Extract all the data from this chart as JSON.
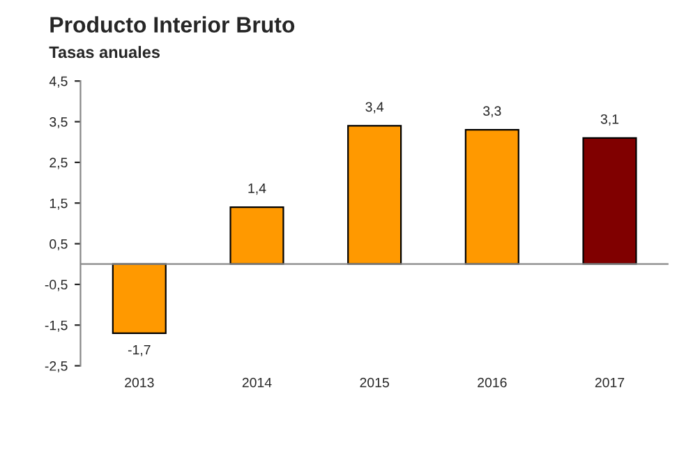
{
  "chart_data": {
    "type": "bar",
    "title": "Producto Interior Bruto",
    "subtitle": "Tasas anuales",
    "categories": [
      "2013",
      "2014",
      "2015",
      "2016",
      "2017"
    ],
    "values": [
      -1.7,
      1.4,
      3.4,
      3.3,
      3.1
    ],
    "colors": [
      "#ff9900",
      "#ff9900",
      "#ff9900",
      "#ff9900",
      "#800000"
    ],
    "value_labels": [
      "-1,7",
      "1,4",
      "3,4",
      "3,3",
      "3,1"
    ],
    "ylim": [
      -2.5,
      4.5
    ],
    "yticks": [
      {
        "value": -2.5,
        "label": "-2,5"
      },
      {
        "value": -1.5,
        "label": "-1,5"
      },
      {
        "value": -0.5,
        "label": "-0,5"
      },
      {
        "value": 0.5,
        "label": "0,5"
      },
      {
        "value": 1.5,
        "label": "1,5"
      },
      {
        "value": 2.5,
        "label": "2,5"
      },
      {
        "value": 3.5,
        "label": "3,5"
      },
      {
        "value": 4.5,
        "label": "4,5"
      }
    ],
    "grid": false,
    "legend": false
  }
}
